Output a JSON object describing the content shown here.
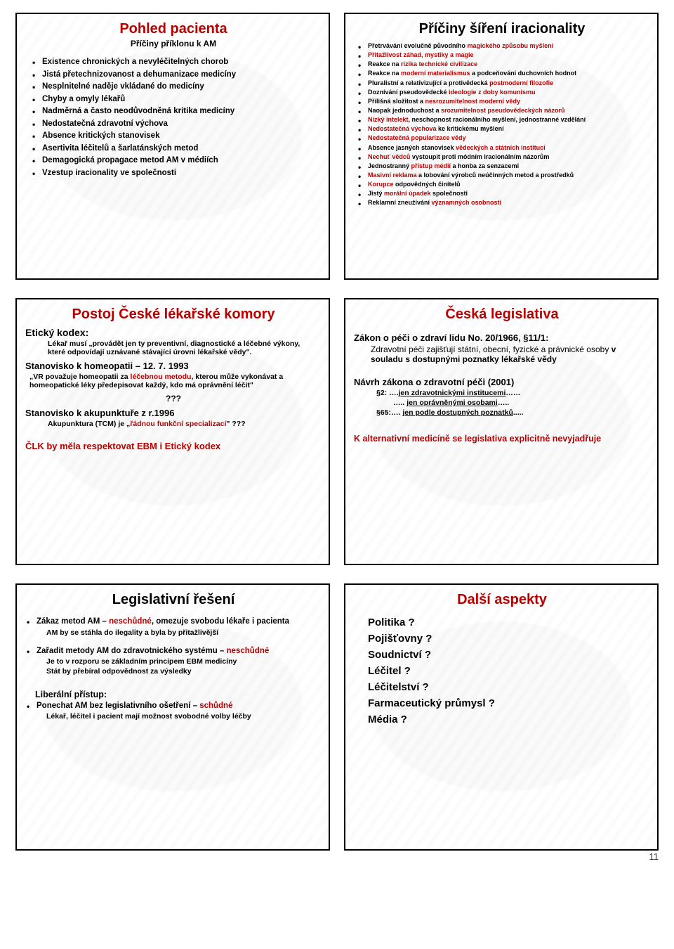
{
  "page_number": "11",
  "colors": {
    "red": "#b90000",
    "black": "#000000"
  },
  "slide1": {
    "title": "Pohled pacienta",
    "subtitle": "Příčiny příklonu k AM",
    "bullets": [
      "Existence chronických a nevyléčitelných chorob",
      "Jistá přetechnizovanost a dehumanizace medicíny",
      "Nesplnitelné naděje vkládané do medicíny",
      "Chyby a omyly lékařů",
      "Nadměrná a často neodůvodněná kritika medicíny",
      "Nedostatečná zdravotní výchova",
      "Absence kritických stanovisek",
      "Asertivita léčitelů a šarlatánských metod",
      "Demagogická propagace metod AM v médiích",
      "Vzestup iracionality ve společnosti"
    ]
  },
  "slide2": {
    "title": "Příčiny šíření iracionality",
    "bullets": [
      {
        "pre": "Přetrvávání evolučně původního ",
        "hi": "magického způsobu myšlení",
        "post": ""
      },
      {
        "pre": "",
        "hi": "Přitažlivost záhad, mystiky a magie",
        "post": ""
      },
      {
        "pre": "Reakce na ",
        "hi": "rizika technické civilizace",
        "post": ""
      },
      {
        "pre": "Reakce na ",
        "hi": "moderní materialismus",
        "post": " a podceňování duchovních hodnot"
      },
      {
        "pre": "Pluralistní a relativizující a protivědecká ",
        "hi": "postmoderní filozofie",
        "post": ""
      },
      {
        "pre": "Doznívání pseudovědecké ",
        "hi": "ideologie z doby komunismu",
        "post": ""
      },
      {
        "pre": "Přílišná složitost a ",
        "hi": "nesrozumitelnost moderní vědy",
        "post": ""
      },
      {
        "pre": "Naopak jednoduchost a ",
        "hi": "srozumitelnost pseudovědeckých názorů",
        "post": ""
      },
      {
        "pre": "",
        "hi": "Nízký intelekt",
        "post": ", neschopnost racionálního myšlení, jednostranné vzdělání"
      },
      {
        "pre": "",
        "hi": "Nedostatečná výchova",
        "post": " ke kritickému myšlení"
      },
      {
        "pre": "",
        "hi": "Nedostatečná popularizace vědy",
        "post": ""
      },
      {
        "pre": "Absence jasných stanovisek ",
        "hi": "vědeckých a státních institucí",
        "post": ""
      },
      {
        "pre": "",
        "hi": "Nechuť vědců",
        "post": " vystoupit proti módním iracionálním názorům"
      },
      {
        "pre": "Jednostranný ",
        "hi": "přístup médií",
        "post": " a honba za senzacemi"
      },
      {
        "pre": "",
        "hi": "Masivní reklama",
        "post": " a lobování výrobců neúčinných metod a prostředků"
      },
      {
        "pre": "",
        "hi": "Korupce",
        "post": " odpovědných činitelů"
      },
      {
        "pre": "Jistý ",
        "hi": "morální úpadek",
        "post": " společnosti"
      },
      {
        "pre": "Reklamní zneužívání ",
        "hi": "významných osobností",
        "post": ""
      }
    ]
  },
  "slide3": {
    "title": "Postoj České lékařské komory",
    "ethics_heading": "Etický kodex:",
    "ethics_text": "Lékař musí „provádět jen ty preventivní, diagnostické a léčebné výkony, které odpovídají uznávané stávající úrovni lékařské vědy\".",
    "homeo_heading": "Stanovisko k homeopatii – 12. 7. 1993",
    "homeo_pre": "„VR považuje homeopatii za ",
    "homeo_hi": "léčebnou metodu",
    "homeo_post": ", kterou může vykonávat a homeopatické léky předepisovat každý, kdo má oprávnění léčit\"",
    "q1": "???",
    "acu_heading": "Stanovisko k akupunktuře z r.1996",
    "acu_pre": "Akupunktura (TCM) je „",
    "acu_hi": "řádnou funkční specializací",
    "acu_post": "\" ",
    "q2": "???",
    "closing": "ČLK by měla respektovat EBM i Etický kodex"
  },
  "slide4": {
    "title": "Česká legislativa",
    "law_heading": "Zákon o péči o zdraví lidu No. 20/1966, §11/1:",
    "law_text_pre": "Zdravotní péči zajišťují státní, obecní, fyzické a právnické osoby ",
    "law_text_bold": "v souladu s dostupnými poznatky lékařské vědy",
    "draft_heading": "Návrh zákona o zdravotní péči (2001)",
    "draft_line1_a": "§2: ….",
    "draft_line1_b": "jen zdravotnickými institucemi",
    "draft_line1_c": "……",
    "draft_line2_a": "….. ",
    "draft_line2_b": "jen oprávněnými osobami",
    "draft_line2_c": "…..",
    "draft_line3_a": "§65:…. ",
    "draft_line3_b": "jen podle dostupných poznatků",
    "draft_line3_c": ".....",
    "closing": "K alternativní medicíně se legislativa explicitně nevyjadřuje"
  },
  "slide5": {
    "title": "Legislativní řešení",
    "b1_pre": "Zákaz metod AM – ",
    "b1_hi": "neschůdné",
    "b1_post": ", omezuje svobodu lékaře i pacienta",
    "b1_sub": "AM by se stáhla do ilegality a byla by přitažlivější",
    "b2_pre": "Zařadit metody AM do zdravotnického systému – ",
    "b2_hi": "neschůdné",
    "b2_sub1": "Je to v rozporu se základním principem EBM medicíny",
    "b2_sub2": "Stát by přebíral odpovědnost za výsledky",
    "liberal": "Liberální přístup:",
    "b3_pre": "Ponechat AM bez legislativního ošetření – ",
    "b3_hi": "schůdné",
    "b3_sub": "Lékař, léčitel i pacient mají možnost svobodné volby léčby"
  },
  "slide6": {
    "title": "Další aspekty",
    "items": [
      "Politika ?",
      "Pojišťovny ?",
      "Soudnictví ?",
      "Léčitel ?",
      "Léčitelství ?",
      "Farmaceutický průmysl ?",
      "Média ?"
    ]
  }
}
